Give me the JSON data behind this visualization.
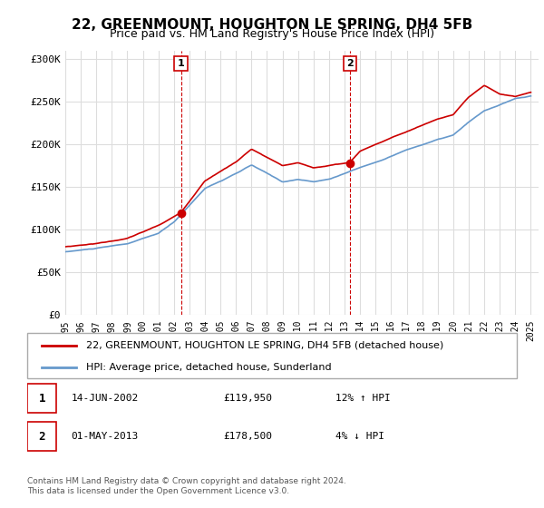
{
  "title": "22, GREENMOUNT, HOUGHTON LE SPRING, DH4 5FB",
  "subtitle": "Price paid vs. HM Land Registry's House Price Index (HPI)",
  "ylabel_ticks": [
    "£0",
    "£50K",
    "£100K",
    "£150K",
    "£200K",
    "£250K",
    "£300K"
  ],
  "ytick_vals": [
    0,
    50000,
    100000,
    150000,
    200000,
    250000,
    300000
  ],
  "ylim": [
    0,
    310000
  ],
  "xlim_start": 1995.0,
  "xlim_end": 2025.5,
  "legend_line1": "22, GREENMOUNT, HOUGHTON LE SPRING, DH4 5FB (detached house)",
  "legend_line2": "HPI: Average price, detached house, Sunderland",
  "red_color": "#cc0000",
  "blue_color": "#6699cc",
  "marker1_x": 2002.45,
  "marker1_y": 119950,
  "marker2_x": 2013.33,
  "marker2_y": 178500,
  "annotation1_label": "1",
  "annotation2_label": "2",
  "info1": "1    14-JUN-2002    £119,950    12% ↑ HPI",
  "info2": "2    01-MAY-2013    £178,500    4% ↓ HPI",
  "footnote": "Contains HM Land Registry data © Crown copyright and database right 2024.\nThis data is licensed under the Open Government Licence v3.0.",
  "bg_color": "#ffffff",
  "grid_color": "#dddddd",
  "title_fontsize": 11,
  "subtitle_fontsize": 9,
  "tick_fontsize": 8
}
